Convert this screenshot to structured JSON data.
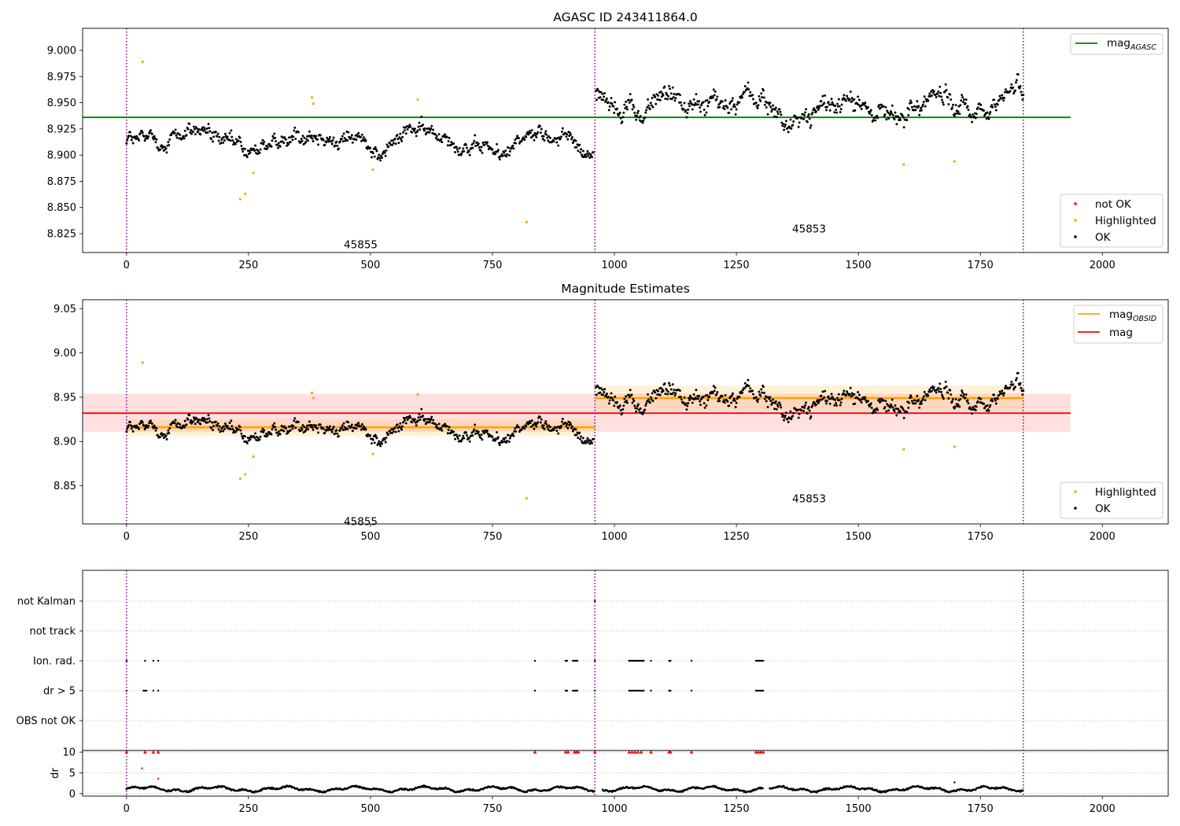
{
  "chart_data": [
    {
      "type": "scatter",
      "title": "AGASC ID 243411864.0",
      "xlim": [
        -90,
        2135
      ],
      "ylim": [
        8.807,
        9.021
      ],
      "xticks": [
        0,
        250,
        500,
        750,
        1000,
        1250,
        1500,
        1750,
        2000
      ],
      "yticks": [
        8.825,
        8.85,
        8.875,
        8.9,
        8.925,
        8.95,
        8.975,
        9.0
      ],
      "obsid_boundaries": [
        0,
        960,
        1838
      ],
      "obsid_labels": [
        {
          "text": "45855",
          "x": 480,
          "y": 8.815
        },
        {
          "text": "45853",
          "x": 1399,
          "y": 8.83
        }
      ],
      "reference_line": {
        "name": "mag_AGASC",
        "y": 8.936,
        "x": [
          -90,
          1935
        ],
        "color": "#008000"
      },
      "series": [
        {
          "name": "not OK",
          "color": "#ff0000",
          "points": []
        },
        {
          "name": "Highlighted",
          "color": "#ffa500",
          "points": [
            [
              33,
              8.989
            ],
            [
              233,
              8.858
            ],
            [
              243,
              8.863
            ],
            [
              260,
              8.883
            ],
            [
              380,
              8.955
            ],
            [
              383,
              8.949
            ],
            [
              505,
              8.886
            ],
            [
              597,
              8.953
            ],
            [
              820,
              8.836
            ],
            [
              1593,
              8.891
            ],
            [
              1697,
              8.894
            ]
          ]
        },
        {
          "name": "OK",
          "color": "#000000",
          "segments": [
            {
              "start": 0,
              "end": 958,
              "step": 1.5,
              "levels": [
                [
                  0,
                  8.916
                ],
                [
                  60,
                  8.912
                ],
                [
                  130,
                  8.922
                ],
                [
                  200,
                  8.908
                ],
                [
                  250,
                  8.902
                ],
                [
                  300,
                  8.915
                ],
                [
                  380,
                  8.925
                ],
                [
                  450,
                  8.914
                ],
                [
                  520,
                  8.905
                ],
                [
                  580,
                  8.925
                ],
                [
                  650,
                  8.918
                ],
                [
                  700,
                  8.91
                ],
                [
                  760,
                  8.9
                ],
                [
                  830,
                  8.925
                ],
                [
                  900,
                  8.918
                ],
                [
                  958,
                  8.908
                ]
              ],
              "amp": 0.008
            },
            {
              "start": 962,
              "end": 1838,
              "step": 1.5,
              "levels": [
                [
                  962,
                  8.962
                ],
                [
                  1000,
                  8.955
                ],
                [
                  1060,
                  8.938
                ],
                [
                  1120,
                  8.958
                ],
                [
                  1180,
                  8.945
                ],
                [
                  1250,
                  8.955
                ],
                [
                  1300,
                  8.948
                ],
                [
                  1360,
                  8.935
                ],
                [
                  1420,
                  8.94
                ],
                [
                  1480,
                  8.958
                ],
                [
                  1540,
                  8.94
                ],
                [
                  1600,
                  8.935
                ],
                [
                  1660,
                  8.962
                ],
                [
                  1720,
                  8.942
                ],
                [
                  1780,
                  8.952
                ],
                [
                  1838,
                  8.962
                ]
              ],
              "amp": 0.01
            }
          ]
        }
      ],
      "legends": [
        {
          "position": "upper-right",
          "entries": [
            {
              "kind": "line",
              "label_main": "mag",
              "label_sub": "AGASC",
              "color": "#008000"
            }
          ]
        },
        {
          "position": "lower-right",
          "entries": [
            {
              "kind": "marker",
              "label": "not OK",
              "color": "#ff0000"
            },
            {
              "kind": "marker",
              "label": "Highlighted",
              "color": "#ffa500"
            },
            {
              "kind": "marker",
              "label": "OK",
              "color": "#000000"
            }
          ]
        }
      ]
    },
    {
      "type": "scatter",
      "title": "Magnitude Estimates",
      "xlim": [
        -90,
        2135
      ],
      "ylim": [
        8.807,
        9.06
      ],
      "xticks": [
        0,
        250,
        500,
        750,
        1000,
        1250,
        1500,
        1750,
        2000
      ],
      "yticks": [
        8.85,
        8.9,
        8.95,
        9.0,
        9.05
      ],
      "obsid_boundaries": [
        0,
        960,
        1838
      ],
      "obsid_labels": [
        {
          "text": "45855",
          "x": 480,
          "y": 8.81
        },
        {
          "text": "45853",
          "x": 1399,
          "y": 8.836
        }
      ],
      "mag_line": {
        "name": "mag",
        "y": 8.932,
        "band": [
          8.911,
          8.954
        ],
        "x": [
          -90,
          1935
        ],
        "color": "#ff0000"
      },
      "obsid_mag": [
        {
          "x": [
            0,
            960
          ],
          "y": 8.916,
          "band": [
            8.906,
            8.925
          ]
        },
        {
          "x": [
            960,
            1838
          ],
          "y": 8.949,
          "band": [
            8.935,
            8.963
          ]
        }
      ],
      "series": [
        {
          "name": "Highlighted",
          "color": "#ffa500",
          "points": [
            [
              33,
              8.989
            ],
            [
              233,
              8.858
            ],
            [
              243,
              8.863
            ],
            [
              260,
              8.883
            ],
            [
              380,
              8.955
            ],
            [
              383,
              8.949
            ],
            [
              505,
              8.886
            ],
            [
              597,
              8.953
            ],
            [
              820,
              8.836
            ],
            [
              1593,
              8.891
            ],
            [
              1697,
              8.894
            ]
          ]
        },
        {
          "name": "OK",
          "color": "#000000",
          "same_as_panel": 0
        }
      ],
      "legends": [
        {
          "position": "upper-right",
          "entries": [
            {
              "kind": "line",
              "label_main": "mag",
              "label_sub": "OBSID",
              "color": "#ffa500"
            },
            {
              "kind": "line",
              "label_main": "mag",
              "label_sub": "",
              "color": "#ff0000"
            }
          ]
        },
        {
          "position": "lower-right",
          "entries": [
            {
              "kind": "marker",
              "label": "Highlighted",
              "color": "#ffa500"
            },
            {
              "kind": "marker",
              "label": "OK",
              "color": "#000000"
            }
          ]
        }
      ]
    },
    {
      "type": "scatter",
      "xlim": [
        -90,
        2135
      ],
      "flag_rows": [
        "not Kalman",
        "not track",
        "Ion. rad.",
        "dr > 5",
        "OBS not OK"
      ],
      "flags": {
        "not Kalman": [
          [
            960,
            960
          ]
        ],
        "not track": [],
        "Ion. rad.": [
          [
            0,
            0
          ],
          [
            38,
            40
          ],
          [
            55,
            56
          ],
          [
            65,
            66
          ],
          [
            837,
            838
          ],
          [
            900,
            905
          ],
          [
            915,
            925
          ],
          [
            960,
            960
          ],
          [
            1030,
            1060
          ],
          [
            1075,
            1076
          ],
          [
            1112,
            1115
          ],
          [
            1158,
            1159
          ],
          [
            1290,
            1305
          ]
        ],
        "dr > 5": [
          [
            0,
            0
          ],
          [
            35,
            42
          ],
          [
            55,
            56
          ],
          [
            65,
            66
          ],
          [
            837,
            838
          ],
          [
            900,
            905
          ],
          [
            915,
            925
          ],
          [
            960,
            960
          ],
          [
            1030,
            1060
          ],
          [
            1075,
            1076
          ],
          [
            1112,
            1115
          ],
          [
            1158,
            1159
          ],
          [
            1290,
            1305
          ]
        ],
        "OBS not OK": []
      },
      "dr": {
        "ylabel": "dr",
        "yticks": [
          0,
          5,
          10
        ],
        "ylim": [
          -0.6,
          10.4
        ],
        "clip": 10,
        "baseline": 1.1,
        "gaps": [
          [
            960,
            975
          ],
          [
            1305,
            1318
          ]
        ],
        "outliers": [
          [
            32,
            6.1
          ],
          [
            65,
            3.6
          ],
          [
            1697,
            2.7
          ]
        ],
        "clipped": [
          [
            0,
            10
          ],
          [
            38,
            10
          ],
          [
            55,
            10
          ],
          [
            65,
            10
          ],
          [
            837,
            10
          ],
          [
            900,
            10
          ],
          [
            905,
            10
          ],
          [
            918,
            10
          ],
          [
            922,
            10
          ],
          [
            926,
            10
          ],
          [
            960,
            10
          ],
          [
            1030,
            10
          ],
          [
            1036,
            10
          ],
          [
            1042,
            10
          ],
          [
            1048,
            10
          ],
          [
            1055,
            10
          ],
          [
            1075,
            10
          ],
          [
            1112,
            10
          ],
          [
            1115,
            10
          ],
          [
            1158,
            10
          ],
          [
            1290,
            10
          ],
          [
            1295,
            10
          ],
          [
            1300,
            10
          ],
          [
            1305,
            10
          ]
        ],
        "end": 1838
      },
      "obsid_boundaries": [
        0,
        960,
        1838
      ],
      "xticks": [
        0,
        250,
        500,
        750,
        1000,
        1250,
        1500,
        1750,
        2000
      ]
    }
  ]
}
